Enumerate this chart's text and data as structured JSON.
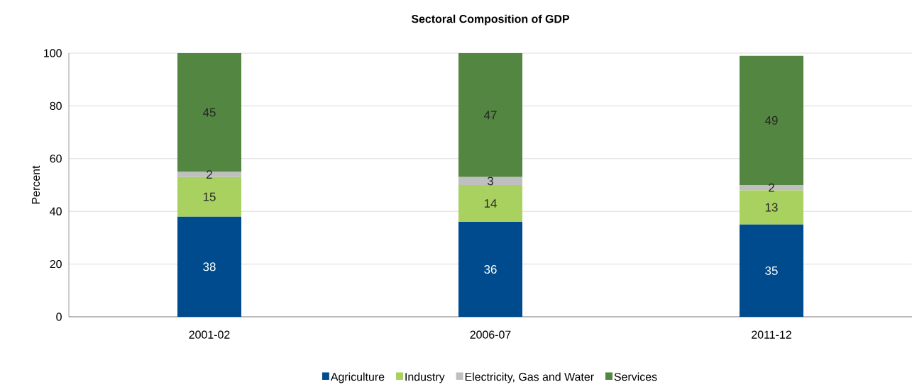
{
  "chart_data": {
    "type": "bar",
    "title": "Sectoral Composition of GDP",
    "ylabel": "Percent",
    "categories": [
      "2001-02",
      "2006-07",
      "2011-12"
    ],
    "series": [
      {
        "name": "Agriculture",
        "color": "#004b8d",
        "values": [
          38,
          36,
          35
        ]
      },
      {
        "name": "Industry",
        "color": "#a9d15f",
        "values": [
          15,
          14,
          13
        ]
      },
      {
        "name": "Electricity, Gas and Water",
        "color": "#bfbfbf",
        "values": [
          2,
          3,
          2
        ]
      },
      {
        "name": "Services",
        "color": "#538640",
        "values": [
          45,
          47,
          49
        ]
      }
    ],
    "stacked": true,
    "data_labels": true,
    "ylim": [
      0,
      100
    ],
    "yticks": [
      0,
      20,
      40,
      60,
      80,
      100
    ],
    "grid": "y",
    "legend": "bottom"
  }
}
